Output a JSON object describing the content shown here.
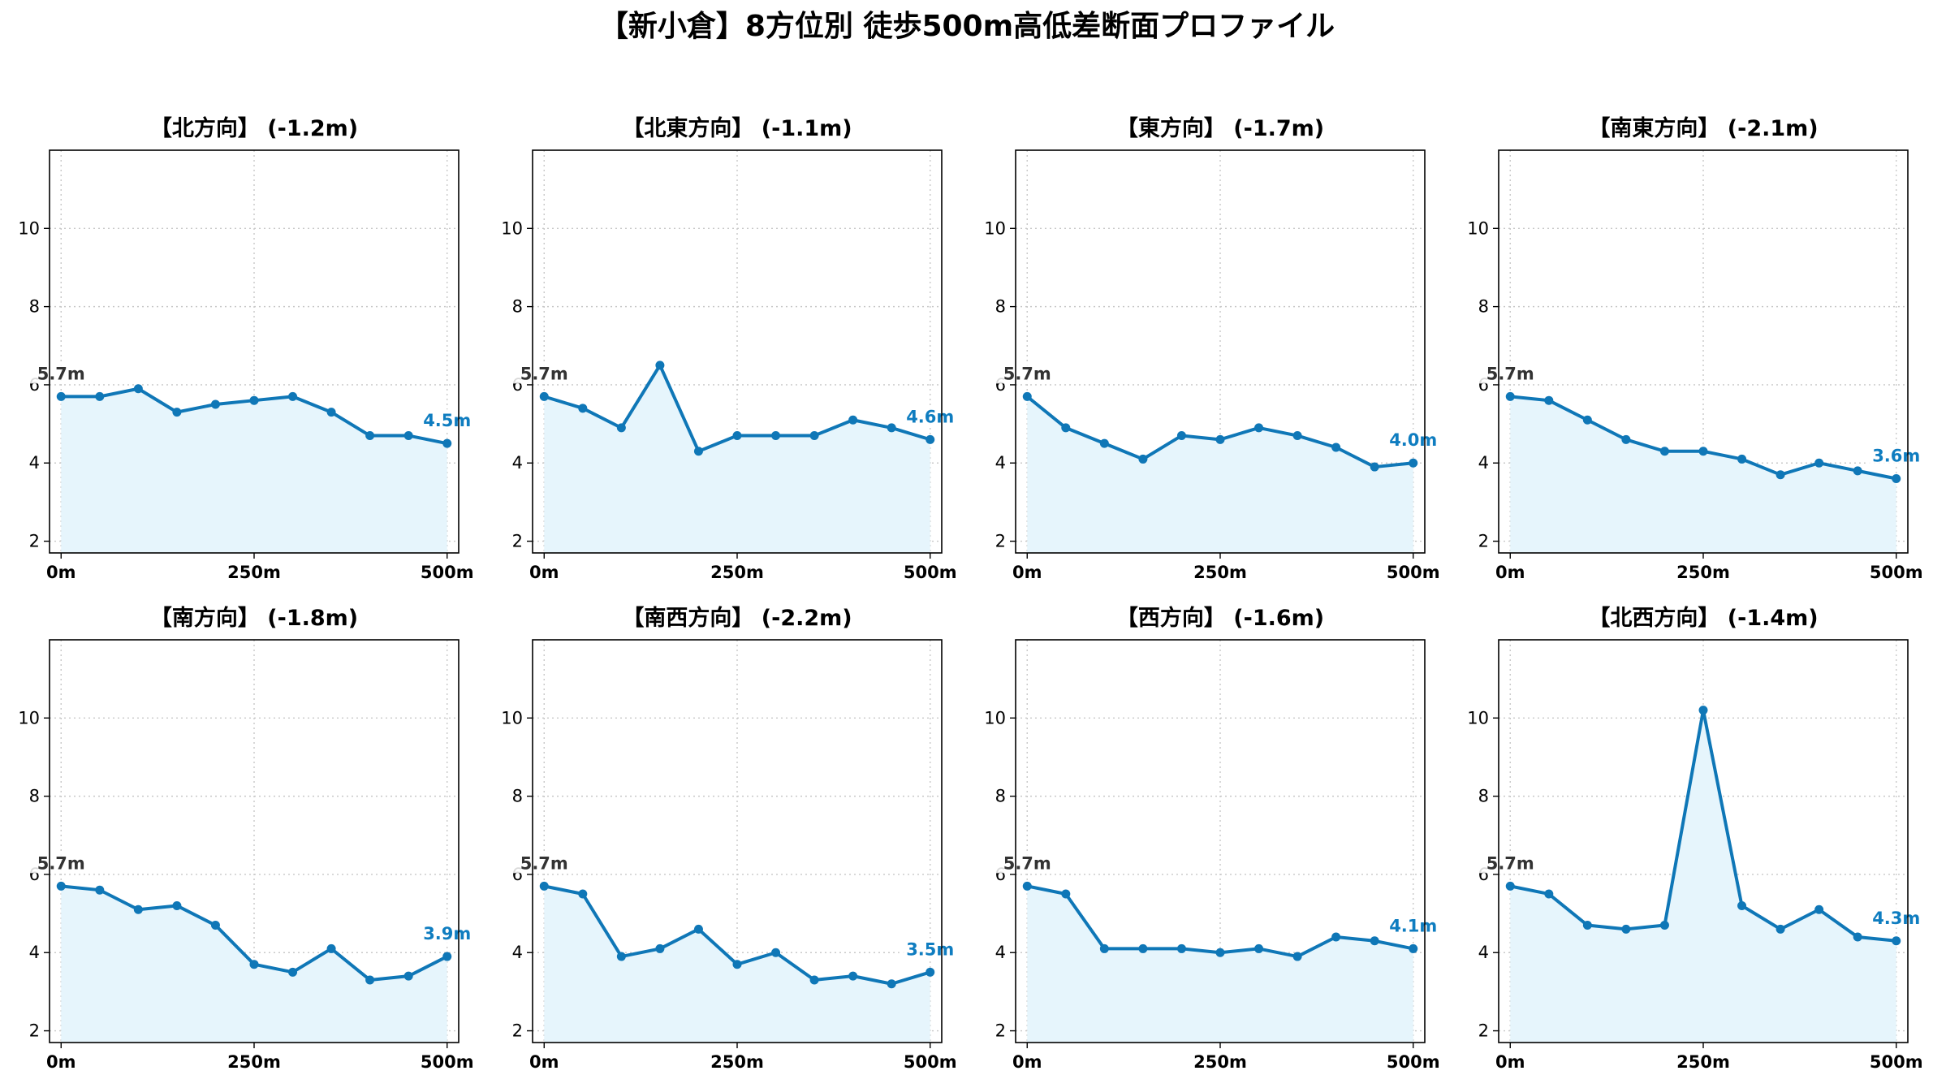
{
  "figure_title": "【新小倉】8方位別 徒歩500m高低差断面プロファイル",
  "colors": {
    "line": "#0f77b7",
    "fill": "#e6f5fc",
    "end_label": "#0f7dc0",
    "start_label": "#333333",
    "grid": "#c8c8c8"
  },
  "chart_data": [
    {
      "type": "area",
      "title": "【北方向】 (-1.2m)",
      "x": [
        0,
        50,
        100,
        150,
        200,
        250,
        300,
        350,
        400,
        450,
        500
      ],
      "y": [
        5.7,
        5.7,
        5.9,
        5.3,
        5.5,
        5.6,
        5.7,
        5.3,
        4.7,
        4.7,
        4.5
      ],
      "xticks": [
        "0m",
        "250m",
        "500m"
      ],
      "yticks": [
        "2",
        "4",
        "6",
        "8",
        "10"
      ],
      "ylim": [
        1.7,
        12.0
      ],
      "xlim": [
        -15,
        515
      ],
      "grid": true,
      "start_label": "5.7m",
      "end_label": "4.5m"
    },
    {
      "type": "area",
      "title": "【北東方向】 (-1.1m)",
      "x": [
        0,
        50,
        100,
        150,
        200,
        250,
        300,
        350,
        400,
        450,
        500
      ],
      "y": [
        5.7,
        5.4,
        4.9,
        6.5,
        4.3,
        4.7,
        4.7,
        4.7,
        5.1,
        4.9,
        4.6
      ],
      "xticks": [
        "0m",
        "250m",
        "500m"
      ],
      "yticks": [
        "2",
        "4",
        "6",
        "8",
        "10"
      ],
      "ylim": [
        1.7,
        12.0
      ],
      "xlim": [
        -15,
        515
      ],
      "grid": true,
      "start_label": "5.7m",
      "end_label": "4.6m"
    },
    {
      "type": "area",
      "title": "【東方向】 (-1.7m)",
      "x": [
        0,
        50,
        100,
        150,
        200,
        250,
        300,
        350,
        400,
        450,
        500
      ],
      "y": [
        5.7,
        4.9,
        4.5,
        4.1,
        4.7,
        4.6,
        4.9,
        4.7,
        4.4,
        3.9,
        4.0
      ],
      "xticks": [
        "0m",
        "250m",
        "500m"
      ],
      "yticks": [
        "2",
        "4",
        "6",
        "8",
        "10"
      ],
      "ylim": [
        1.7,
        12.0
      ],
      "xlim": [
        -15,
        515
      ],
      "grid": true,
      "start_label": "5.7m",
      "end_label": "4.0m"
    },
    {
      "type": "area",
      "title": "【南東方向】 (-2.1m)",
      "x": [
        0,
        50,
        100,
        150,
        200,
        250,
        300,
        350,
        400,
        450,
        500
      ],
      "y": [
        5.7,
        5.6,
        5.1,
        4.6,
        4.3,
        4.3,
        4.1,
        3.7,
        4.0,
        3.8,
        3.6
      ],
      "xticks": [
        "0m",
        "250m",
        "500m"
      ],
      "yticks": [
        "2",
        "4",
        "6",
        "8",
        "10"
      ],
      "ylim": [
        1.7,
        12.0
      ],
      "xlim": [
        -15,
        515
      ],
      "grid": true,
      "start_label": "5.7m",
      "end_label": "3.6m"
    },
    {
      "type": "area",
      "title": "【南方向】 (-1.8m)",
      "x": [
        0,
        50,
        100,
        150,
        200,
        250,
        300,
        350,
        400,
        450,
        500
      ],
      "y": [
        5.7,
        5.6,
        5.1,
        5.2,
        4.7,
        3.7,
        3.5,
        4.1,
        3.3,
        3.4,
        3.9
      ],
      "xticks": [
        "0m",
        "250m",
        "500m"
      ],
      "yticks": [
        "2",
        "4",
        "6",
        "8",
        "10"
      ],
      "ylim": [
        1.7,
        12.0
      ],
      "xlim": [
        -15,
        515
      ],
      "grid": true,
      "start_label": "5.7m",
      "end_label": "3.9m"
    },
    {
      "type": "area",
      "title": "【南西方向】 (-2.2m)",
      "x": [
        0,
        50,
        100,
        150,
        200,
        250,
        300,
        350,
        400,
        450,
        500
      ],
      "y": [
        5.7,
        5.5,
        3.9,
        4.1,
        4.6,
        3.7,
        4.0,
        3.3,
        3.4,
        3.2,
        3.5
      ],
      "xticks": [
        "0m",
        "250m",
        "500m"
      ],
      "yticks": [
        "2",
        "4",
        "6",
        "8",
        "10"
      ],
      "ylim": [
        1.7,
        12.0
      ],
      "xlim": [
        -15,
        515
      ],
      "grid": true,
      "start_label": "5.7m",
      "end_label": "3.5m"
    },
    {
      "type": "area",
      "title": "【西方向】 (-1.6m)",
      "x": [
        0,
        50,
        100,
        150,
        200,
        250,
        300,
        350,
        400,
        450,
        500
      ],
      "y": [
        5.7,
        5.5,
        4.1,
        4.1,
        4.1,
        4.0,
        4.1,
        3.9,
        4.4,
        4.3,
        4.1
      ],
      "xticks": [
        "0m",
        "250m",
        "500m"
      ],
      "yticks": [
        "2",
        "4",
        "6",
        "8",
        "10"
      ],
      "ylim": [
        1.7,
        12.0
      ],
      "xlim": [
        -15,
        515
      ],
      "grid": true,
      "start_label": "5.7m",
      "end_label": "4.1m"
    },
    {
      "type": "area",
      "title": "【北西方向】 (-1.4m)",
      "x": [
        0,
        50,
        100,
        150,
        200,
        250,
        300,
        350,
        400,
        450,
        500
      ],
      "y": [
        5.7,
        5.5,
        4.7,
        4.6,
        4.7,
        10.2,
        5.2,
        4.6,
        5.1,
        4.4,
        4.3
      ],
      "xticks": [
        "0m",
        "250m",
        "500m"
      ],
      "yticks": [
        "2",
        "4",
        "6",
        "8",
        "10"
      ],
      "ylim": [
        1.7,
        12.0
      ],
      "xlim": [
        -15,
        515
      ],
      "grid": true,
      "start_label": "5.7m",
      "end_label": "4.3m"
    }
  ]
}
